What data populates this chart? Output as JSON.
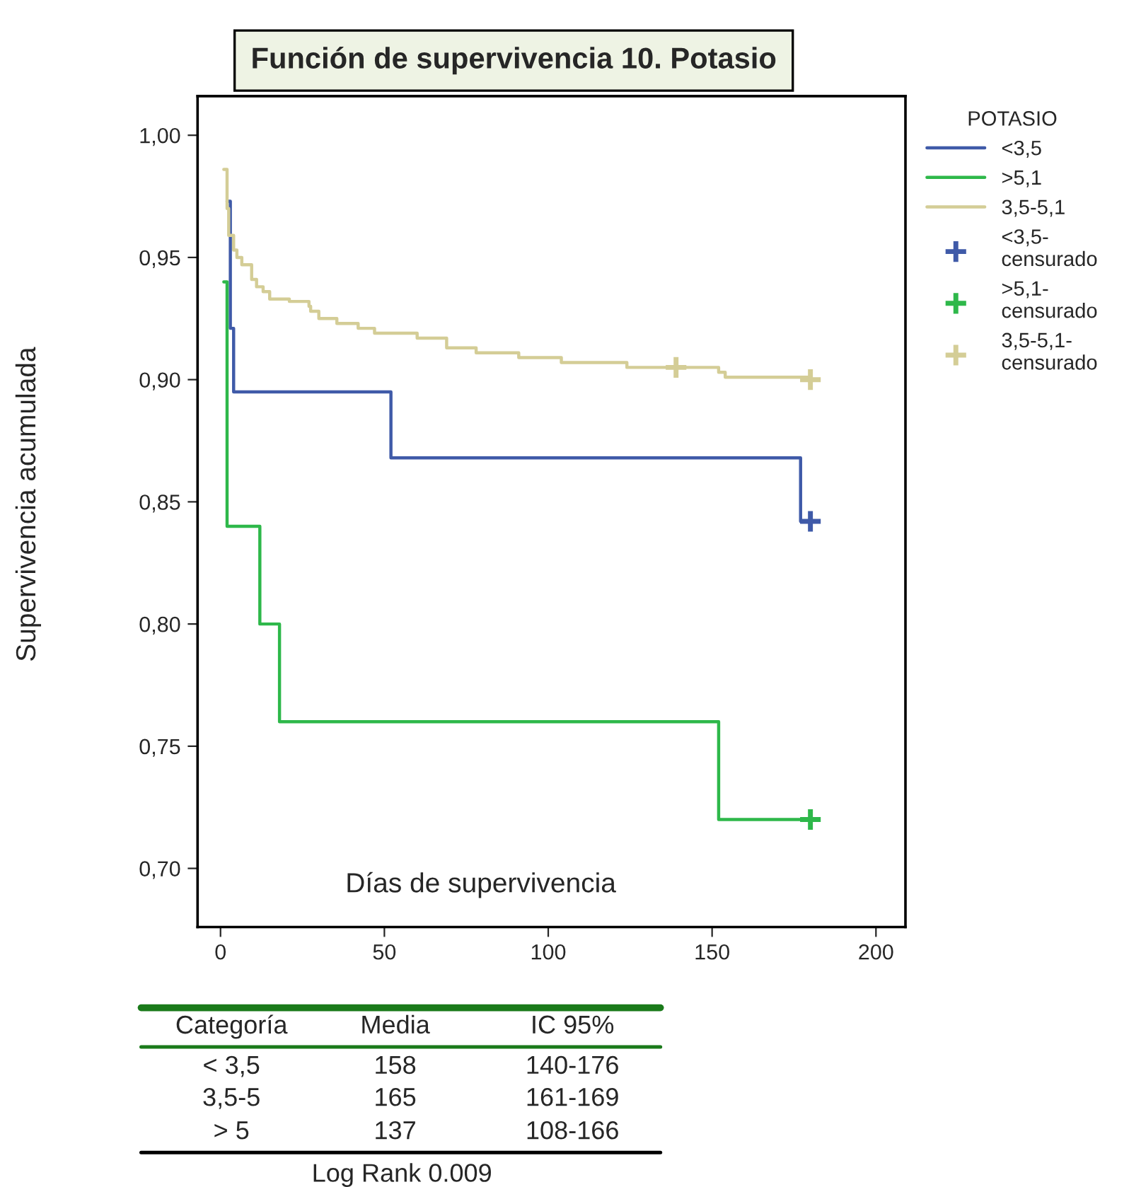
{
  "chart_data": [
    {
      "type": "step",
      "title": "Función de supervivencia 10. Potasio",
      "xlabel": "Días de supervivencia",
      "ylabel": "Supervivencia acumulada",
      "legend_title": "POTASIO",
      "legend": "right",
      "xlim": [
        -7,
        209
      ],
      "xticks": [
        0,
        50,
        100,
        150,
        200
      ],
      "ylim": [
        0.676,
        1.016
      ],
      "yticks": [
        {
          "value": 0.7,
          "label": "0,70"
        },
        {
          "value": 0.75,
          "label": "0,75"
        },
        {
          "value": 0.8,
          "label": "0,80"
        },
        {
          "value": 0.85,
          "label": "0,85"
        },
        {
          "value": 0.9,
          "label": "0,90"
        },
        {
          "value": 0.95,
          "label": "0,95"
        },
        {
          "value": 1.0,
          "label": "1,00"
        }
      ],
      "grid": false,
      "series": [
        {
          "name": "<3,5",
          "color": "#3f5aa8",
          "type": "step",
          "x": [
            2,
            3,
            4,
            52,
            177,
            180
          ],
          "values": [
            0.973,
            0.921,
            0.895,
            0.868,
            0.842,
            0.842
          ]
        },
        {
          "name": ">5,1",
          "color": "#2eb84a",
          "type": "step",
          "x": [
            1,
            2,
            12,
            18,
            152,
            180
          ],
          "values": [
            0.94,
            0.84,
            0.8,
            0.76,
            0.72,
            0.72
          ]
        },
        {
          "name": "3,5-5,1",
          "color": "#d4cd96",
          "type": "step",
          "x": [
            1,
            2,
            2.5,
            4,
            5,
            6.5,
            9.5,
            11,
            13,
            15,
            21,
            27,
            27.5,
            30,
            35.5,
            42,
            47,
            60,
            69,
            78,
            91,
            104,
            124,
            152,
            154,
            180
          ],
          "values": [
            0.986,
            0.97,
            0.959,
            0.953,
            0.95,
            0.947,
            0.941,
            0.938,
            0.936,
            0.933,
            0.932,
            0.93,
            0.928,
            0.925,
            0.923,
            0.921,
            0.919,
            0.917,
            0.913,
            0.911,
            0.909,
            0.907,
            0.905,
            0.903,
            0.901,
            0.9
          ]
        },
        {
          "name": "<3,5-\ncensurado",
          "color": "#3f5aa8",
          "type": "scatter",
          "marker": "cross",
          "x": [
            180
          ],
          "values": [
            0.842
          ]
        },
        {
          "name": ">5,1-\ncensurado",
          "color": "#2eb84a",
          "type": "scatter",
          "marker": "cross",
          "x": [
            180
          ],
          "values": [
            0.72
          ]
        },
        {
          "name": "3,5-5,1-\ncensurado",
          "color": "#d4cd96",
          "type": "scatter",
          "marker": "cross",
          "x": [
            139,
            180
          ],
          "values": [
            0.905,
            0.9
          ]
        }
      ]
    },
    {
      "type": "other",
      "annotations": [
        "Categoría",
        "Media",
        "IC 95%",
        "< 3,5",
        "158",
        "140-176",
        "3,5-5",
        "165",
        "161-169",
        "> 5",
        "137",
        "108-166",
        "Log Rank 0.009"
      ]
    }
  ]
}
